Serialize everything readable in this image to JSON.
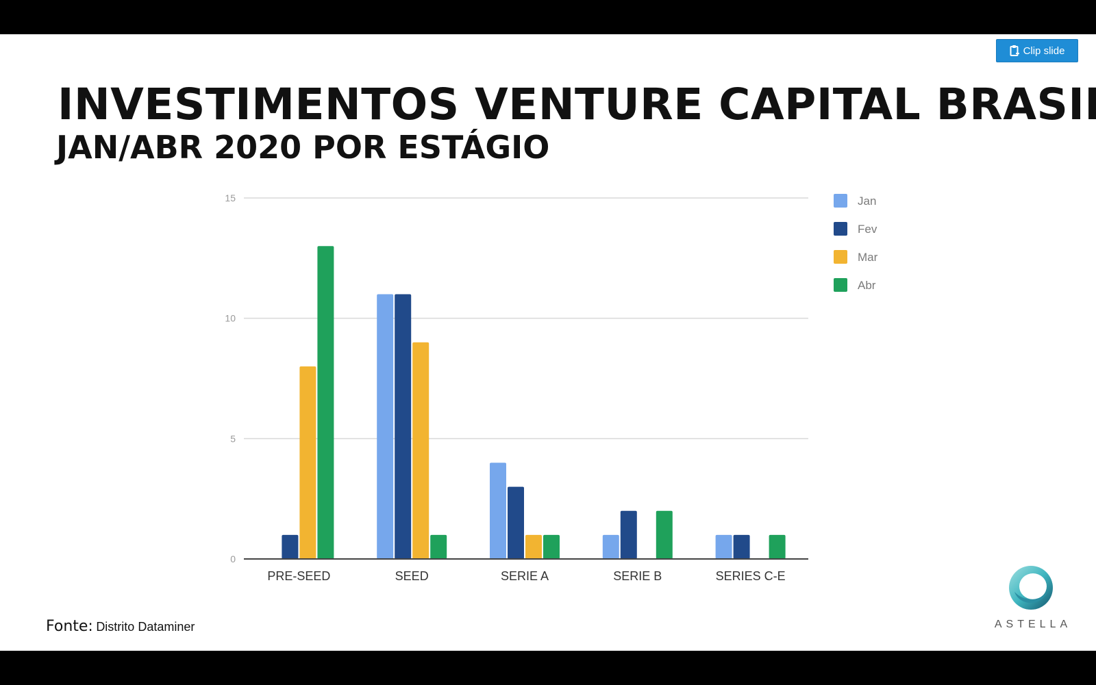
{
  "header": {
    "clip_button_label": "Clip slide"
  },
  "slide": {
    "title": "INVESTIMENTOS VENTURE CAPITAL BRASIL",
    "subtitle": "JAN/ABR 2020 POR ESTÁGIO",
    "source_label": "Fonte:",
    "source_name": "Distrito Dataminer",
    "logo_text": "ASTELLA"
  },
  "colors": {
    "clip_button": "#1f8dd6",
    "logo_teal": "#3fb6c0"
  },
  "chart_data": {
    "type": "bar",
    "title": "",
    "xlabel": "",
    "ylabel": "",
    "categories": [
      "PRE-SEED",
      "SEED",
      "SERIE A",
      "SERIE B",
      "SERIES C-E"
    ],
    "ylim": [
      0,
      15
    ],
    "yticks": [
      0,
      5,
      10,
      15
    ],
    "grid": true,
    "legend_position": "right",
    "series": [
      {
        "name": "Jan",
        "color": "#76a7ec",
        "values": [
          0,
          11,
          4,
          1,
          1
        ]
      },
      {
        "name": "Fev",
        "color": "#214a8a",
        "values": [
          1,
          11,
          3,
          2,
          1
        ]
      },
      {
        "name": "Mar",
        "color": "#f2b431",
        "values": [
          8,
          9,
          1,
          0,
          0
        ]
      },
      {
        "name": "Abr",
        "color": "#1fa15b",
        "values": [
          13,
          1,
          1,
          2,
          1
        ]
      }
    ]
  }
}
